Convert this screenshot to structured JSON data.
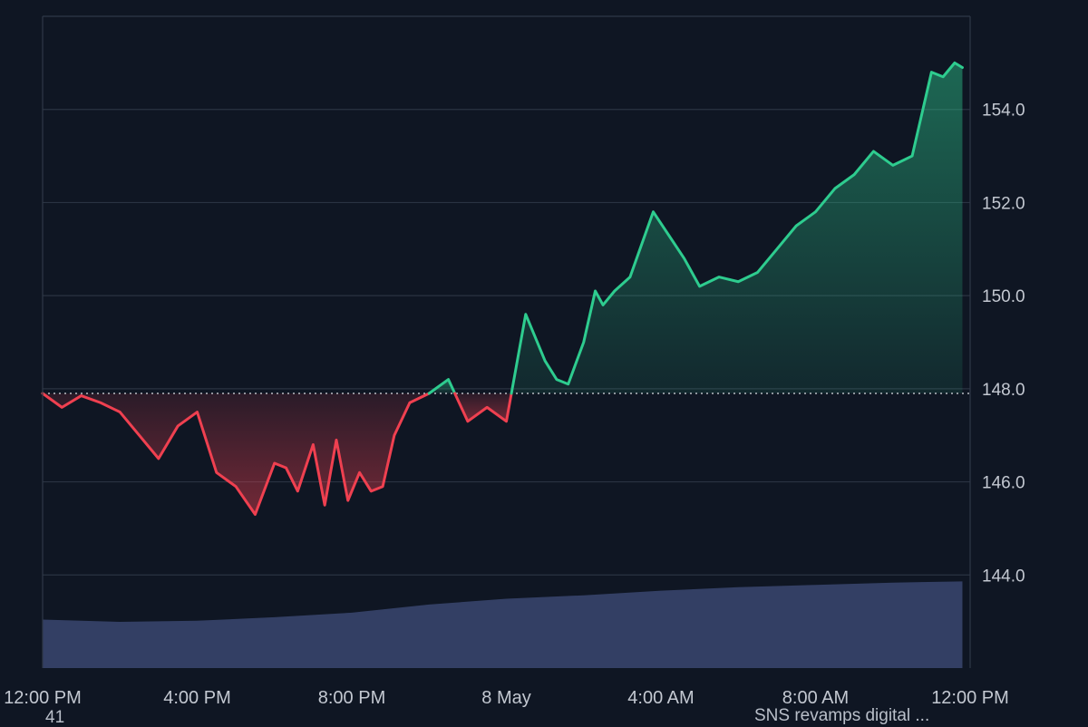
{
  "chart_data": {
    "type": "area",
    "baseline": 147.9,
    "y_axis": {
      "range": [
        142.0,
        156.0
      ],
      "ticks": [
        "144.0",
        "146.0",
        "148.0",
        "150.0",
        "152.0",
        "154.0"
      ],
      "position": "right"
    },
    "x_axis": {
      "labels": [
        "12:00 PM",
        "4:00 PM",
        "8:00 PM",
        "8 May",
        "4:00 AM",
        "8:00 AM",
        "12:00 PM"
      ],
      "range_hours": [
        0,
        24
      ]
    },
    "grid": "horizontal",
    "colors": {
      "up": "#2ecc8f",
      "down": "#ef4050",
      "volume": "#3a4670",
      "grid": "#2a3342",
      "baseline": "#d6dae0",
      "axis_text": "#c3c8d1",
      "background": "#0f1623"
    },
    "series": [
      {
        "x": [
          0,
          0.5,
          1.0,
          1.5,
          2.0,
          2.5,
          3.0,
          3.5,
          4.0,
          4.5,
          5.0,
          5.5,
          6.0,
          6.3,
          6.6,
          7.0,
          7.3,
          7.6,
          7.9,
          8.2,
          8.5,
          8.8,
          9.1,
          9.5,
          10.0,
          10.5,
          11.0,
          11.5,
          12.0,
          12.5,
          13.0,
          13.3,
          13.6,
          14.0,
          14.3,
          14.5,
          14.8,
          15.2,
          15.8,
          16.2,
          16.6,
          17.0,
          17.5,
          18.0,
          18.5,
          19.0,
          19.5,
          20.0,
          20.5,
          21.0,
          21.5,
          22.0,
          22.5,
          23.0,
          23.3,
          23.6,
          23.8
        ],
        "y": [
          147.9,
          147.6,
          147.85,
          147.7,
          147.5,
          147.0,
          146.5,
          147.2,
          147.5,
          146.2,
          145.9,
          145.3,
          146.4,
          146.3,
          145.8,
          146.8,
          145.5,
          146.9,
          145.6,
          146.2,
          145.8,
          145.9,
          147.0,
          147.7,
          147.9,
          148.2,
          147.3,
          147.6,
          147.3,
          149.6,
          148.6,
          148.2,
          148.1,
          149.0,
          150.1,
          149.8,
          150.1,
          150.4,
          151.8,
          151.3,
          150.8,
          150.2,
          150.4,
          150.3,
          150.5,
          151.0,
          151.5,
          151.8,
          152.3,
          152.6,
          153.1,
          152.8,
          153.0,
          154.8,
          154.7,
          155.0,
          154.9
        ]
      }
    ],
    "volume": {
      "x": [
        0,
        2,
        4,
        6,
        8,
        10,
        12,
        14,
        16,
        18,
        20,
        22,
        23.8
      ],
      "values": [
        0.42,
        0.4,
        0.41,
        0.44,
        0.48,
        0.55,
        0.6,
        0.63,
        0.67,
        0.7,
        0.72,
        0.74,
        0.75
      ]
    }
  },
  "footer": {
    "left_text": "41",
    "right_text": "SNS revamps digital ..."
  }
}
